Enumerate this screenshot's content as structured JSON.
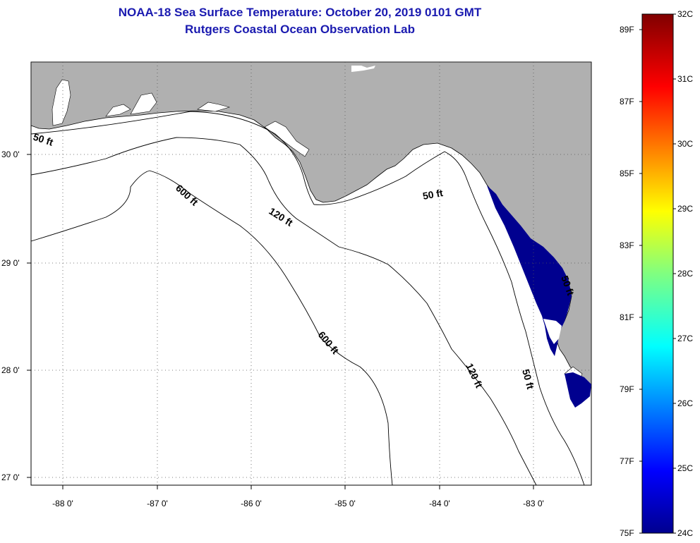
{
  "title": "NOAA-18 Sea Surface Temperature:  October 20, 2019 0101 GMT",
  "subtitle": "Rutgers Coastal Ocean Observation Lab",
  "map": {
    "lon_ticks": [
      "-88 0'",
      "-87 0'",
      "-86 0'",
      "-85 0'",
      "-84 0'",
      "-83 0'"
    ],
    "lat_ticks": [
      "30 0'",
      "29 0'",
      "28 0'",
      "27 0'"
    ],
    "contour_labels": {
      "c50_west": "50 ft",
      "c50_mid": "50 ft",
      "c50_south": "50 ft",
      "c50_east": "50 ft",
      "c120_north": "120 ft",
      "c120_south": "120 ft",
      "c600_north": "600 ft",
      "c600_south": "600 ft"
    },
    "land_color": "#b0b0b0",
    "sst_color": "#00008f"
  },
  "colorbar": {
    "celsius": [
      "32C",
      "31C",
      "30C",
      "29C",
      "28C",
      "27C",
      "26C",
      "25C",
      "24C"
    ],
    "fahrenheit": [
      "89F",
      "87F",
      "85F",
      "83F",
      "81F",
      "79F",
      "77F",
      "75F"
    ]
  }
}
